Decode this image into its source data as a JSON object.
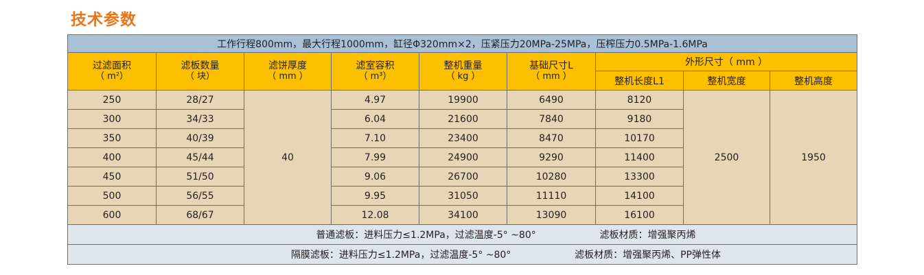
{
  "title": "技术参数",
  "summary": "工作行程800mm，最大行程1000mm，缸径Φ320mm×2，压紧压力20MPa-25MPa，压榨压力0.5MPa-1.6MPa",
  "headers": {
    "area": {
      "label": "过滤面积",
      "unit": "（ m²）"
    },
    "plates": {
      "label": "滤板数量",
      "unit": "（ 块）"
    },
    "cake": {
      "label": "滤饼厚度",
      "unit": "（ mm ）"
    },
    "volume": {
      "label": "滤室容积",
      "unit": "（ m³）"
    },
    "weight": {
      "label": "整机重量",
      "unit": "（ kg ）"
    },
    "foundation": {
      "label": "基础尺寸L",
      "unit": "（ mm ）"
    },
    "outer": {
      "label": "外形尺寸（ mm ）"
    },
    "length": "整机长度L1",
    "width": "整机宽度",
    "height": "整机高度"
  },
  "rows": [
    {
      "area": "250",
      "plates": "28/27",
      "volume": "4.97",
      "weight": "19900",
      "foundation": "6490",
      "length": "8120"
    },
    {
      "area": "300",
      "plates": "34/33",
      "volume": "6.04",
      "weight": "21600",
      "foundation": "7840",
      "length": "9180"
    },
    {
      "area": "350",
      "plates": "40/39",
      "volume": "7.10",
      "weight": "23400",
      "foundation": "8470",
      "length": "10170"
    },
    {
      "area": "400",
      "plates": "45/44",
      "volume": "7.99",
      "weight": "24900",
      "foundation": "9290",
      "length": "11400"
    },
    {
      "area": "450",
      "plates": "51/50",
      "volume": "9.06",
      "weight": "26700",
      "foundation": "10280",
      "length": "13300"
    },
    {
      "area": "500",
      "plates": "56/55",
      "volume": "9.95",
      "weight": "31050",
      "foundation": "11110",
      "length": "14100"
    },
    {
      "area": "600",
      "plates": "68/67",
      "volume": "12.08",
      "weight": "34100",
      "foundation": "13090",
      "length": "16100"
    }
  ],
  "shared": {
    "cake": "40",
    "width": "2500",
    "height": "1950"
  },
  "notes": [
    {
      "left": "普通滤板：进料压力≤1.2MPa，过滤温度-5° ~80°",
      "right": "滤板材质：增强聚丙烯"
    },
    {
      "left": "隔膜滤板：进料压力≤1.2MPa，过滤温度-5° ~80°",
      "right": "滤板材质：增强聚丙烯、PP弹性体"
    }
  ]
}
